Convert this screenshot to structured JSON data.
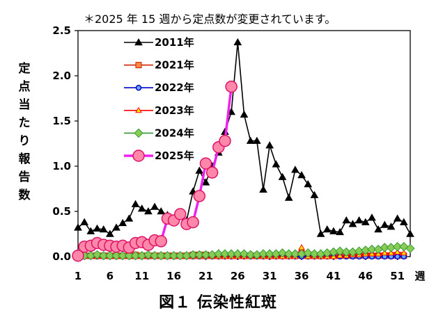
{
  "note": "＊2025 年 15 週から定点数が変更されています。",
  "figure_title": "図１ 伝染性紅斑",
  "chart_data": {
    "type": "line",
    "ylabel": "定点当たり報告数",
    "xlabel": "週",
    "ylim": [
      0,
      2.5
    ],
    "yticks": [
      0.0,
      0.5,
      1.0,
      1.5,
      2.0,
      2.5
    ],
    "ytick_labels": [
      "0.0",
      "0.5",
      "1.0",
      "1.5",
      "2.0",
      "2.5"
    ],
    "xlim": [
      1,
      53
    ],
    "xticks": [
      1,
      6,
      11,
      16,
      21,
      26,
      31,
      36,
      41,
      46,
      51
    ],
    "xtick_labels": [
      "1",
      "6",
      "11",
      "16",
      "21",
      "26",
      "31",
      "36",
      "41",
      "46",
      "51"
    ],
    "grid": false,
    "legend_position": "top-left",
    "series": [
      {
        "name": "2011年",
        "color": "#000000",
        "marker": "triangle",
        "marker_fill": "#000000",
        "values": [
          0.32,
          0.38,
          0.28,
          0.31,
          0.3,
          0.25,
          0.32,
          0.37,
          0.42,
          0.58,
          0.53,
          0.5,
          0.55,
          0.5,
          0.46,
          0.41,
          0.45,
          0.4,
          0.72,
          0.95,
          0.82,
          1.0,
          1.15,
          1.38,
          1.6,
          2.37,
          1.57,
          1.28,
          1.28,
          0.74,
          1.23,
          1.02,
          0.88,
          0.65,
          0.96,
          0.9,
          0.8,
          0.68,
          0.25,
          0.3,
          0.28,
          0.27,
          0.4,
          0.36,
          0.4,
          0.38,
          0.43,
          0.3,
          0.35,
          0.33,
          0.42,
          0.38,
          0.25
        ]
      },
      {
        "name": "2021年",
        "color": "#cc2200",
        "marker": "square",
        "marker_fill": "#ff8844",
        "values": [
          0.01,
          0.01,
          0.01,
          0.01,
          0.01,
          0.01,
          0.01,
          0.01,
          0.01,
          0.02,
          0.01,
          0.01,
          0.01,
          0.01,
          0.01,
          0.01,
          0.01,
          0.01,
          0.02,
          0.02,
          0.02,
          0.01,
          0.01,
          0.01,
          0.01,
          0.01,
          0.01,
          0.01,
          0.01,
          0.01,
          0.01,
          0.01,
          0.01,
          0.01,
          0.01,
          0.01,
          0.01,
          0.01,
          0.01,
          0.01,
          0.01,
          0.01,
          0.01,
          0.01,
          0.01,
          0.01,
          0.01,
          0.01,
          0.01,
          0.01,
          0.01,
          0.01
        ]
      },
      {
        "name": "2022年",
        "color": "#0000cc",
        "marker": "circle",
        "marker_fill": "#66aaff",
        "values": [
          0.0,
          0.0,
          0.0,
          0.0,
          0.0,
          0.0,
          0.0,
          0.0,
          0.0,
          0.0,
          0.0,
          0.0,
          0.0,
          0.0,
          0.0,
          0.0,
          0.0,
          0.0,
          0.0,
          0.0,
          0.0,
          0.0,
          0.0,
          0.0,
          0.0,
          0.0,
          0.0,
          0.0,
          0.0,
          0.0,
          0.0,
          0.0,
          0.0,
          0.0,
          0.0,
          0.0,
          0.0,
          0.0,
          0.0,
          0.0,
          0.0,
          0.0,
          0.0,
          0.0,
          0.0,
          0.0,
          0.0,
          0.0,
          0.0,
          0.0,
          0.0,
          0.0
        ]
      },
      {
        "name": "2023年",
        "color": "#ff0000",
        "marker": "triangle",
        "marker_fill": "#ffee00",
        "values": [
          0.0,
          0.0,
          0.0,
          0.0,
          0.0,
          0.0,
          0.0,
          0.0,
          0.0,
          0.0,
          0.0,
          0.0,
          0.0,
          0.0,
          0.0,
          0.0,
          0.0,
          0.0,
          0.0,
          0.0,
          0.0,
          0.0,
          0.0,
          0.0,
          0.0,
          0.0,
          0.0,
          0.0,
          0.0,
          0.0,
          0.0,
          0.0,
          0.0,
          0.0,
          0.0,
          0.1,
          0.0,
          0.0,
          0.0,
          0.0,
          0.0,
          0.01,
          0.01,
          0.02,
          0.02,
          0.03,
          0.03,
          0.03,
          0.04,
          0.04,
          0.05,
          0.04
        ]
      },
      {
        "name": "2024年",
        "color": "#339933",
        "marker": "diamond",
        "marker_fill": "#88cc55",
        "values": [
          0.01,
          0.01,
          0.01,
          0.02,
          0.01,
          0.01,
          0.01,
          0.01,
          0.01,
          0.01,
          0.01,
          0.02,
          0.01,
          0.01,
          0.01,
          0.01,
          0.01,
          0.01,
          0.02,
          0.02,
          0.02,
          0.02,
          0.03,
          0.03,
          0.03,
          0.03,
          0.03,
          0.02,
          0.02,
          0.03,
          0.03,
          0.03,
          0.04,
          0.03,
          0.03,
          0.03,
          0.04,
          0.03,
          0.03,
          0.04,
          0.05,
          0.06,
          0.05,
          0.05,
          0.06,
          0.07,
          0.08,
          0.08,
          0.1,
          0.1,
          0.11,
          0.11,
          0.09
        ]
      },
      {
        "name": "2025年",
        "color": "#ee22ee",
        "marker": "circle",
        "marker_fill": "#ff88aa",
        "values": [
          0.01,
          0.11,
          0.12,
          0.15,
          0.13,
          0.12,
          0.11,
          0.12,
          0.1,
          0.15,
          0.16,
          0.13,
          0.18,
          0.17,
          0.42,
          0.4,
          0.47,
          0.36,
          0.38,
          0.67,
          1.03,
          0.93,
          1.21,
          1.28,
          1.88
        ]
      }
    ]
  }
}
